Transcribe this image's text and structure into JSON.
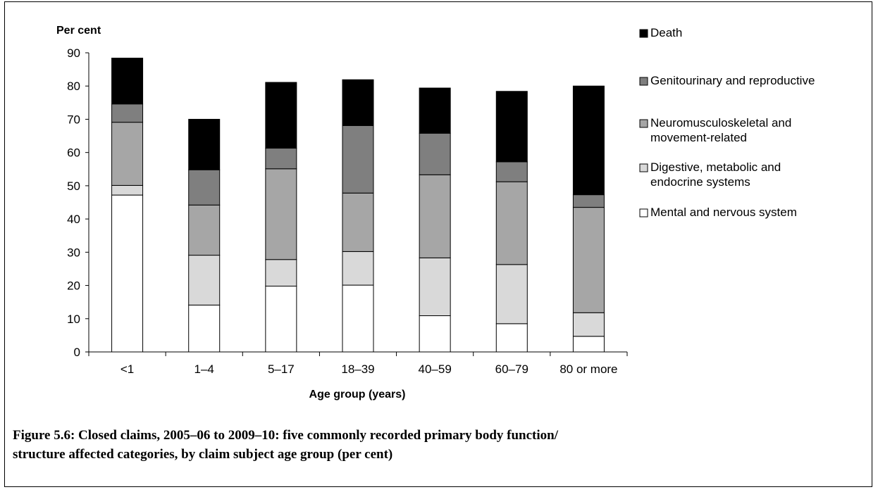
{
  "chart_data": {
    "type": "bar",
    "stacked": true,
    "ylabel": "Per cent",
    "xlabel": "Age group (years)",
    "ylim": [
      0,
      90
    ],
    "yticks": [
      0,
      10,
      20,
      30,
      40,
      50,
      60,
      70,
      80,
      90
    ],
    "categories": [
      "<1",
      "1–4",
      "5–17",
      "18–39",
      "40–59",
      "60–79",
      "80 or more"
    ],
    "series": [
      {
        "name": "Mental and nervous system",
        "color": "#ffffff",
        "values": [
          47.2,
          14.1,
          19.8,
          20.1,
          10.9,
          8.5,
          4.7
        ]
      },
      {
        "name": "Digestive, metabolic and endocrine systems",
        "color": "#d9d9d9",
        "values": [
          2.9,
          15.0,
          8.0,
          10.1,
          17.4,
          17.8,
          7.1
        ]
      },
      {
        "name": "Neuromusculoskeletal and movement-related",
        "color": "#a6a6a6",
        "values": [
          19.0,
          15.1,
          27.3,
          17.6,
          25.0,
          24.9,
          31.7
        ]
      },
      {
        "name": "Genitourinary and reproductive",
        "color": "#7f7f7f",
        "values": [
          5.5,
          10.6,
          6.2,
          20.3,
          12.5,
          6.0,
          3.8
        ]
      },
      {
        "name": "Death",
        "color": "#000000",
        "values": [
          13.8,
          15.2,
          19.8,
          13.8,
          13.6,
          21.2,
          32.7
        ]
      }
    ],
    "legend_order": [
      4,
      3,
      2,
      1,
      0
    ],
    "legend_lines": [
      [
        "Death"
      ],
      [
        "Genitourinary and reproductive"
      ],
      [
        "Neuromusculoskeletal and",
        "movement-related"
      ],
      [
        "Digestive, metabolic and",
        "endocrine systems"
      ],
      [
        "Mental and nervous system"
      ]
    ],
    "legend_position": "right",
    "grid": false
  },
  "caption": {
    "line1": "Figure 5.6: Closed claims, 2005–06 to 2009–10: five commonly recorded primary body function/",
    "line2": "structure affected categories, by claim subject age group (per cent)"
  }
}
